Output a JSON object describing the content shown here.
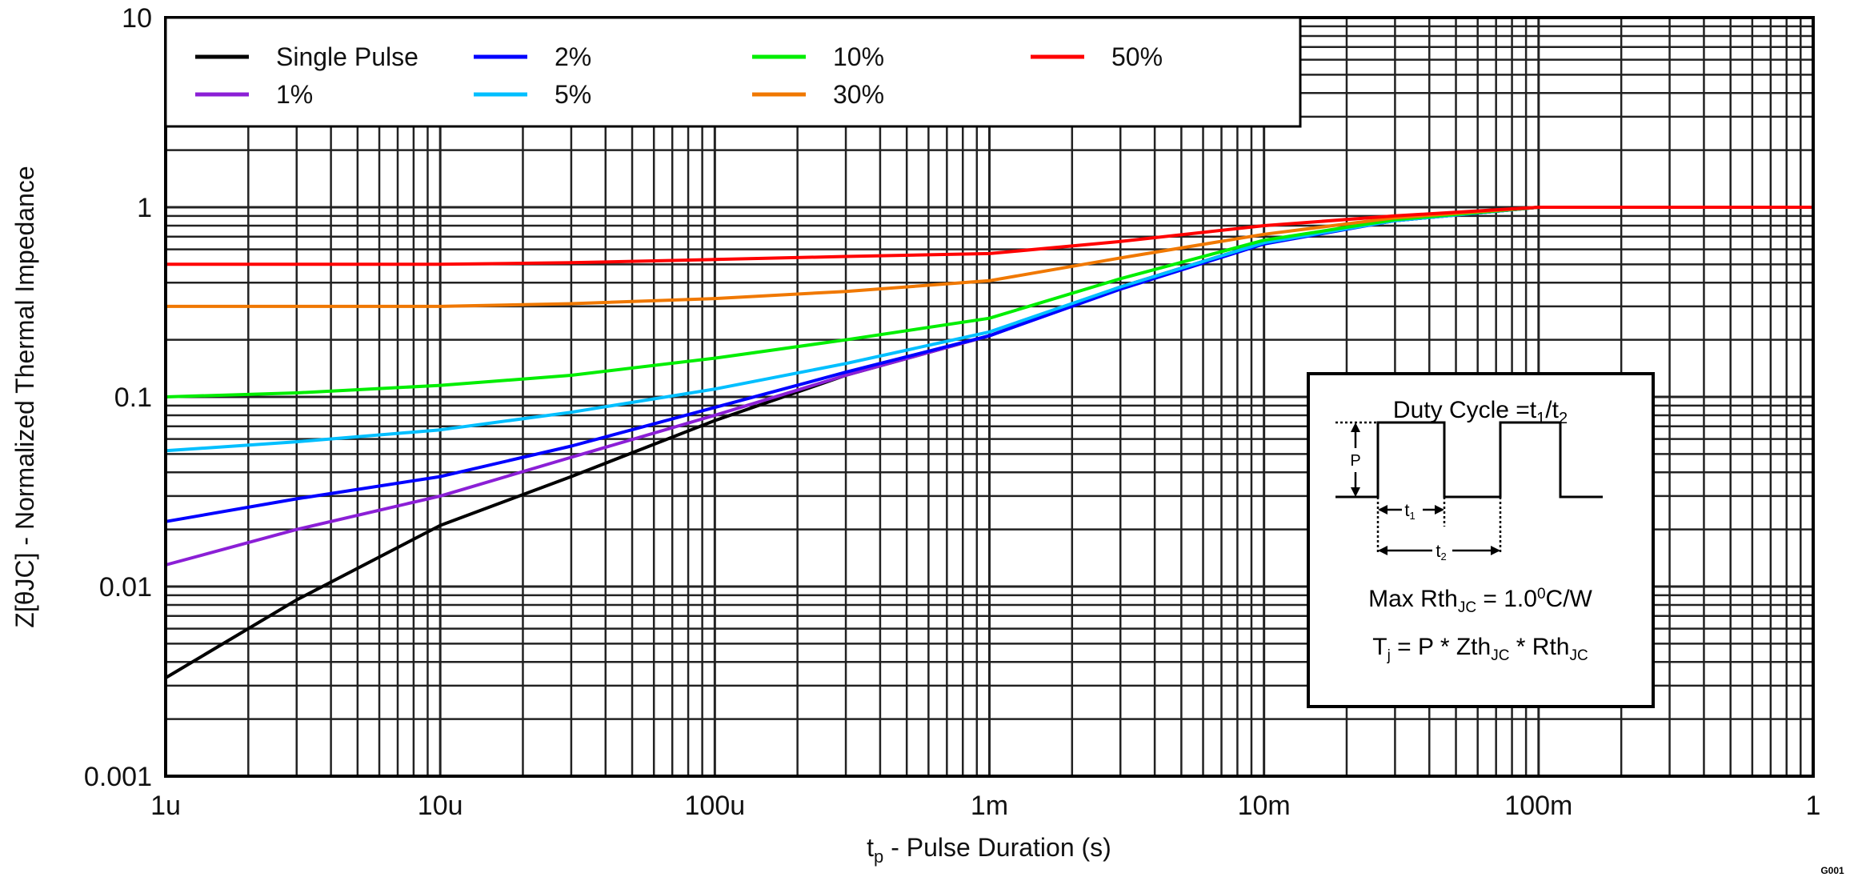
{
  "chart_data": {
    "type": "line",
    "xlabel": "t",
    "xlabel_sub": "p",
    "xlabel_rest": " - Pulse Duration (s)",
    "ylabel": "Z[θJC] - Normalized Thermal Impedance",
    "x_scale": "log",
    "y_scale": "log",
    "xlim": [
      1e-06,
      1
    ],
    "ylim": [
      0.001,
      10
    ],
    "grid": true,
    "legend_position": "top-left",
    "x_ticks": [
      {
        "v": 1e-06,
        "label": "1u"
      },
      {
        "v": 1e-05,
        "label": "10u"
      },
      {
        "v": 0.0001,
        "label": "100u"
      },
      {
        "v": 0.001,
        "label": "1m"
      },
      {
        "v": 0.01,
        "label": "10m"
      },
      {
        "v": 0.1,
        "label": "100m"
      },
      {
        "v": 1,
        "label": "1"
      }
    ],
    "y_ticks": [
      {
        "v": 10,
        "label": "10"
      },
      {
        "v": 1,
        "label": "1"
      },
      {
        "v": 0.1,
        "label": "0.1"
      },
      {
        "v": 0.01,
        "label": "0.01"
      },
      {
        "v": 0.001,
        "label": "0.001"
      }
    ],
    "x": [
      1e-06,
      3e-06,
      1e-05,
      3e-05,
      0.0001,
      0.0003,
      0.001,
      0.003,
      0.01,
      0.03,
      0.1,
      1
    ],
    "series": [
      {
        "name": "Single Pulse",
        "color": "#000000",
        "values": [
          0.0033,
          0.0085,
          0.021,
          0.038,
          0.075,
          0.13,
          0.21,
          0.38,
          0.65,
          0.85,
          1.0,
          1.0
        ]
      },
      {
        "name": "1%",
        "color": "#8B1FD6",
        "values": [
          0.013,
          0.02,
          0.03,
          0.048,
          0.08,
          0.13,
          0.21,
          0.38,
          0.65,
          0.85,
          1.0,
          1.0
        ]
      },
      {
        "name": "2%",
        "color": "#0000FF",
        "values": [
          0.022,
          0.029,
          0.038,
          0.055,
          0.088,
          0.135,
          0.21,
          0.37,
          0.64,
          0.85,
          1.0,
          1.0
        ]
      },
      {
        "name": "5%",
        "color": "#00BFFF",
        "values": [
          0.052,
          0.058,
          0.067,
          0.083,
          0.11,
          0.15,
          0.22,
          0.38,
          0.65,
          0.85,
          1.0,
          1.0
        ]
      },
      {
        "name": "10%",
        "color": "#00EE00",
        "values": [
          0.1,
          0.105,
          0.115,
          0.13,
          0.16,
          0.2,
          0.26,
          0.42,
          0.67,
          0.86,
          1.0,
          1.0
        ]
      },
      {
        "name": "30%",
        "color": "#F07800",
        "values": [
          0.3,
          0.3,
          0.3,
          0.31,
          0.33,
          0.36,
          0.41,
          0.54,
          0.72,
          0.88,
          1.0,
          1.0
        ]
      },
      {
        "name": "50%",
        "color": "#FF0000",
        "values": [
          0.5,
          0.5,
          0.5,
          0.51,
          0.53,
          0.55,
          0.57,
          0.66,
          0.8,
          0.9,
          1.0,
          1.0
        ]
      }
    ],
    "inset": {
      "duty_title": "Duty Cycle =t",
      "duty_sub1": "1",
      "duty_slash": "/t",
      "duty_sub2": "2",
      "p_label": "P",
      "t1_label": "t",
      "t1_sub": "1",
      "t2_label": "t",
      "t2_sub": "2",
      "rth_pre": "Max Rth",
      "rth_sub": "JC",
      "rth_mid": " = 1.0",
      "rth_sup": "0",
      "rth_post": "C/W",
      "tj_t": "T",
      "tj_sub": "j",
      "tj_mid": " = P * Zth",
      "tj_sub2": "JC",
      "tj_mid2": " * Rth",
      "tj_sub3": "JC"
    },
    "figure_id": "G001"
  }
}
